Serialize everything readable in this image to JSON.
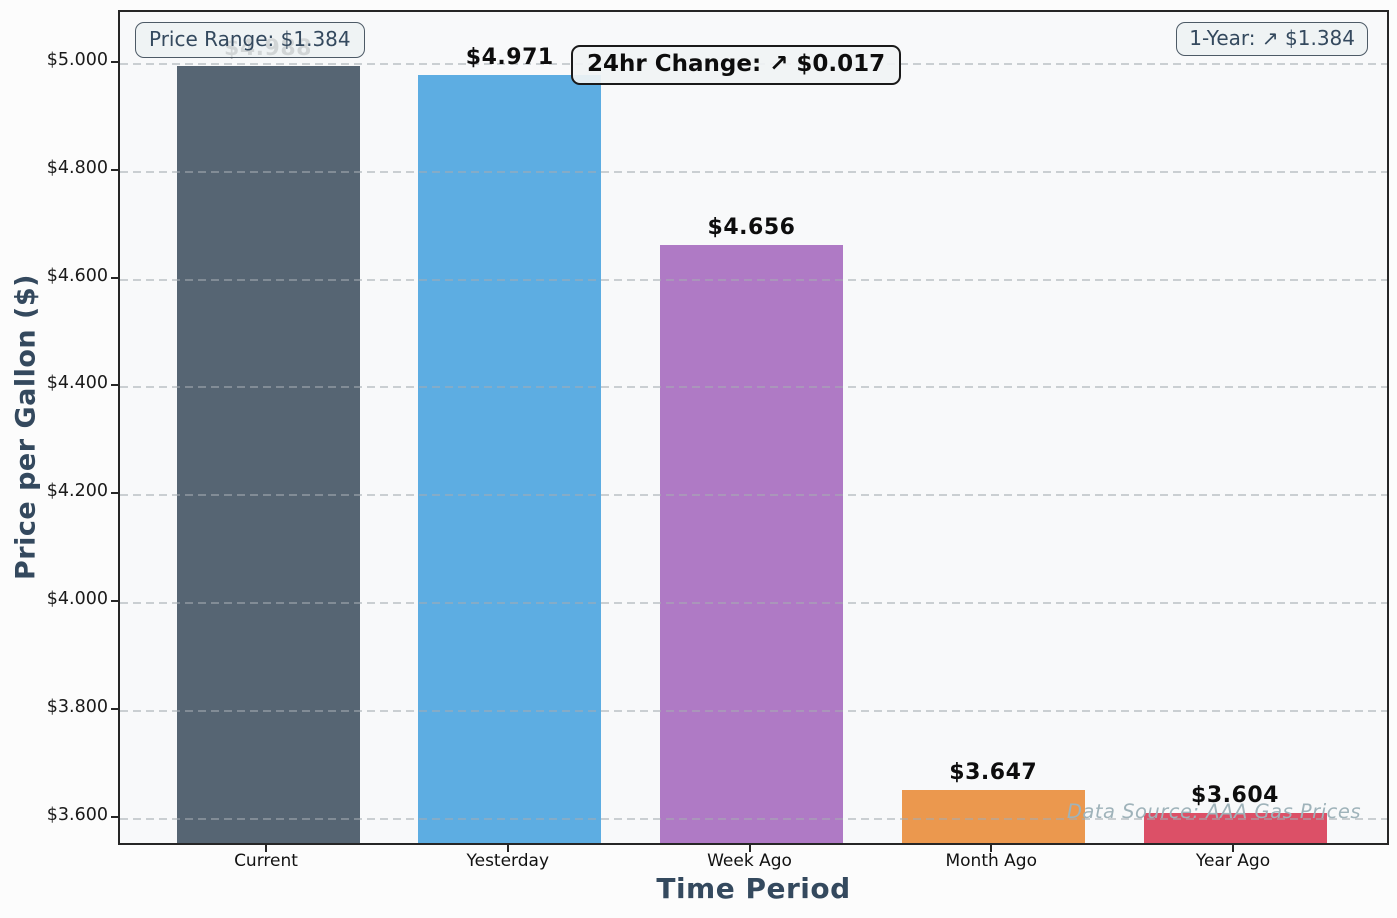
{
  "figure": {
    "background": "#fcfcfc",
    "plot_background": "#f8f9fa"
  },
  "chart_data": {
    "type": "bar",
    "title": "",
    "xlabel": "Time Period",
    "ylabel": "Price per Gallon ($)",
    "categories": [
      "Current",
      "Yesterday",
      "Week Ago",
      "Month Ago",
      "Year Ago"
    ],
    "values": [
      4.988,
      4.971,
      4.656,
      3.647,
      3.604
    ],
    "bar_labels": [
      "$4.988",
      "$4.971",
      "$4.656",
      "$3.647",
      "$3.604"
    ],
    "bar_colors": [
      "#566573",
      "#5DADE2",
      "#AF7AC5",
      "#EB984E",
      "#DC5067"
    ],
    "ylim": [
      3.548,
      5.096
    ],
    "yticks": [
      3.6,
      3.8,
      4.0,
      4.2,
      4.4,
      4.6,
      4.8,
      5.0
    ],
    "ytick_labels": [
      "$3.600",
      "$3.800",
      "$4.000",
      "$4.200",
      "$4.400",
      "$4.600",
      "$4.800",
      "$5.000"
    ],
    "grid": "horizontal-dashed",
    "legend": "none"
  },
  "annotations": {
    "price_range": "Price Range: $1.384",
    "change_24hr": "24hr Change: ↗ $0.017",
    "one_year": "1-Year: ↗ $1.384",
    "data_source": "Data Source: AAA Gas Prices"
  },
  "colors": {
    "axis_title_text": "#34495e",
    "tick_text": "#1a1a1a",
    "annotation_text": "#34495e",
    "annotation_border": "#4d5a66",
    "change_annotation_text": "#0d0d0d",
    "data_source_text": "#9fb3ba",
    "gridline": "#a5acb2",
    "frame": "#262626"
  }
}
